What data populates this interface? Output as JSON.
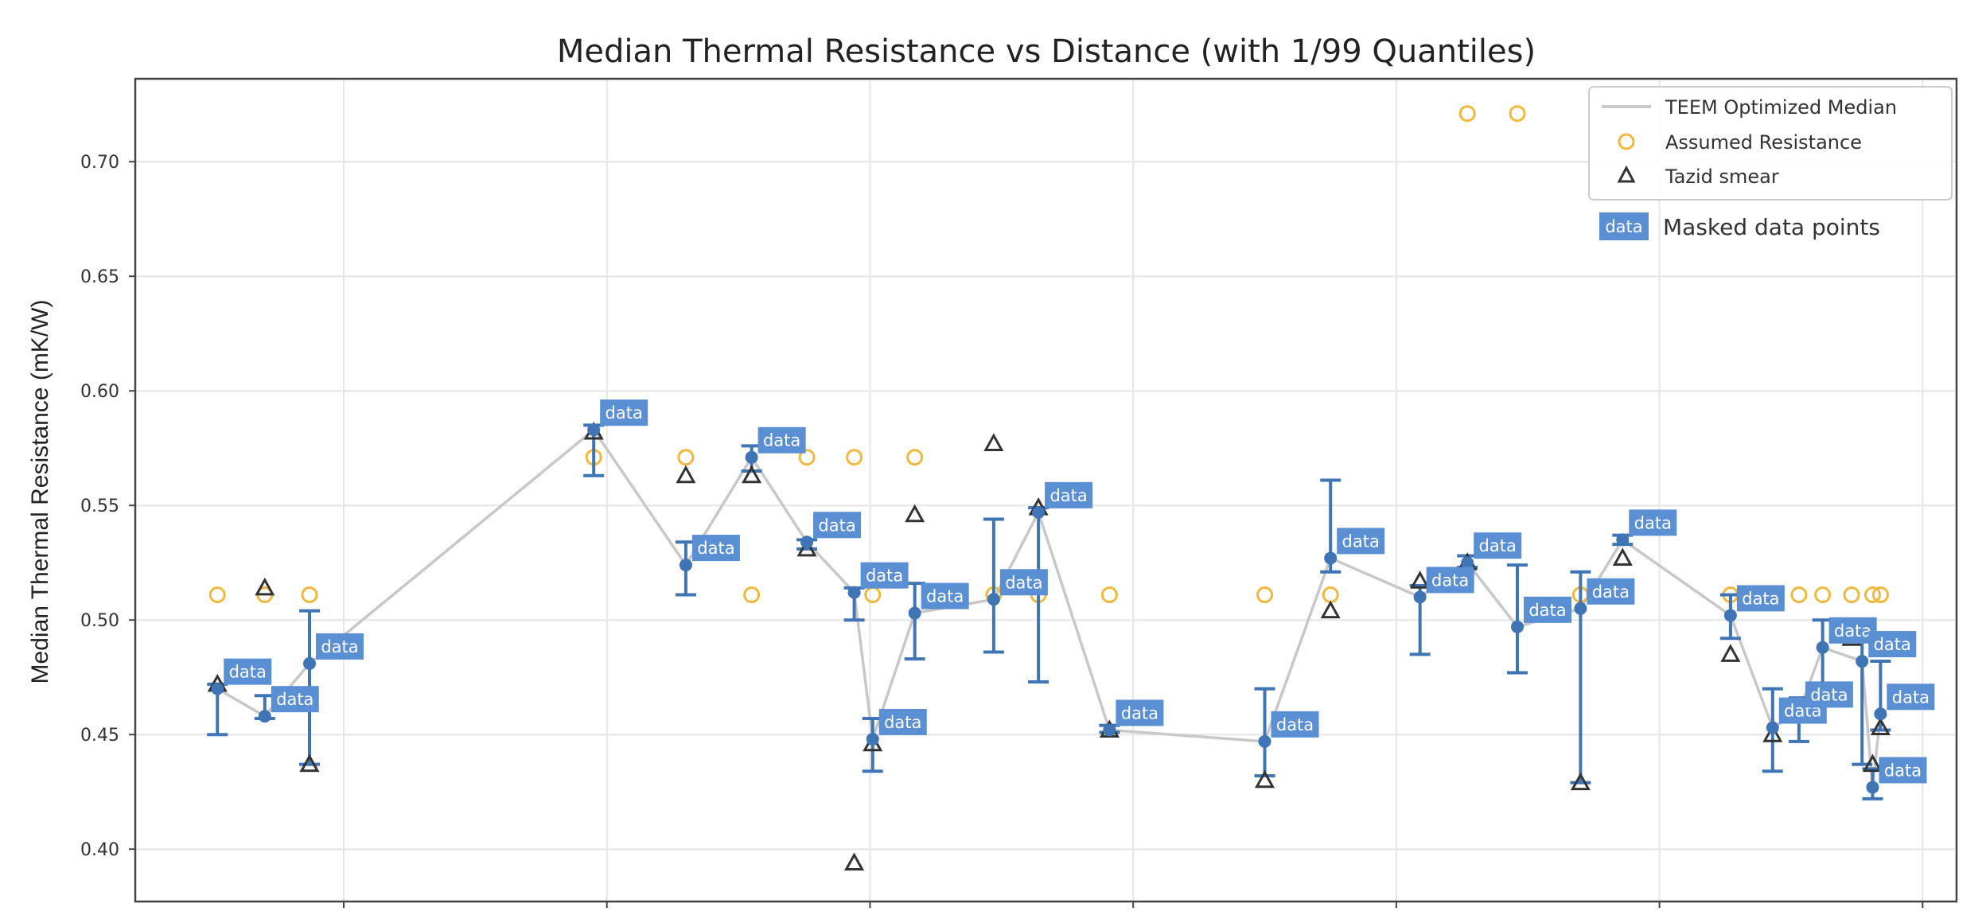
{
  "chart_data": {
    "type": "scatter",
    "title": "Median Thermal Resistance vs Distance (with 1/99 Quantiles)",
    "xlabel": "",
    "ylabel": "Median Thermal Resistance (mK/W)",
    "x_tick_labels": [],
    "xlim": [
      0.2,
      7.13
    ],
    "ylim": [
      0.377,
      0.736
    ],
    "yticks": [
      "0.40",
      "0.45",
      "0.50",
      "0.55",
      "0.60",
      "0.65",
      "0.70"
    ],
    "grid": true,
    "legend_position": "top-right",
    "colors": {
      "median_line": "#c8c8c8",
      "median_points": "#3f74b5",
      "assumed": "#f0b83c",
      "tazid": "#333333",
      "mask_box": "#5b8fd4"
    },
    "series": [
      {
        "name": "TEEM Optimized Median",
        "x": [
          0.52,
          0.7,
          0.87,
          1.95,
          2.3,
          2.55,
          2.76,
          2.94,
          3.01,
          3.17,
          3.47,
          3.64,
          3.91,
          4.5,
          4.75,
          5.09,
          5.27,
          5.46,
          5.7,
          5.86,
          6.27,
          6.43,
          6.53,
          6.62,
          6.77,
          6.81,
          6.84
        ],
        "y": [
          0.47,
          0.458,
          0.481,
          0.583,
          0.524,
          0.571,
          0.534,
          0.512,
          0.448,
          0.503,
          0.509,
          0.547,
          0.452,
          0.447,
          0.527,
          0.51,
          0.525,
          0.497,
          0.505,
          0.535,
          0.502,
          0.453,
          0.46,
          0.488,
          0.482,
          0.427,
          0.459
        ],
        "q01": [
          0.45,
          0.457,
          0.437,
          0.563,
          0.511,
          0.565,
          0.531,
          0.5,
          0.434,
          0.483,
          0.486,
          0.473,
          0.451,
          0.432,
          0.521,
          0.485,
          0.523,
          0.477,
          0.429,
          0.533,
          0.492,
          0.434,
          0.447,
          0.47,
          0.437,
          0.422,
          0.452
        ],
        "q99": [
          0.472,
          0.467,
          0.504,
          0.585,
          0.534,
          0.576,
          0.535,
          0.514,
          0.457,
          0.516,
          0.544,
          0.549,
          0.454,
          0.47,
          0.561,
          0.515,
          0.528,
          0.524,
          0.521,
          0.537,
          0.511,
          0.47,
          0.466,
          0.5,
          0.5,
          0.435,
          0.482
        ]
      },
      {
        "name": "Assumed Resistance",
        "x": [
          0.52,
          0.7,
          0.87,
          1.95,
          2.3,
          2.55,
          2.76,
          2.94,
          3.01,
          3.17,
          3.47,
          3.64,
          3.91,
          4.5,
          4.75,
          5.27,
          5.46,
          5.7,
          5.86,
          6.27,
          6.43,
          6.53,
          6.62,
          6.73,
          6.81,
          6.84
        ],
        "y": [
          0.511,
          0.511,
          0.511,
          0.571,
          0.571,
          0.511,
          0.571,
          0.571,
          0.511,
          0.571,
          0.511,
          0.511,
          0.511,
          0.511,
          0.511,
          0.721,
          0.721,
          0.511,
          0.511,
          0.511,
          0.511,
          0.511,
          0.511,
          0.511,
          0.511,
          0.511
        ]
      },
      {
        "name": "Tazid smear",
        "x": [
          0.52,
          0.7,
          0.87,
          1.95,
          2.3,
          2.55,
          2.76,
          2.94,
          3.01,
          3.17,
          3.47,
          3.64,
          3.91,
          4.5,
          4.75,
          5.09,
          5.27,
          5.7,
          5.86,
          6.27,
          6.43,
          6.62,
          6.73,
          6.81,
          6.84
        ],
        "y": [
          0.472,
          0.514,
          0.437,
          0.582,
          0.563,
          0.563,
          0.531,
          0.394,
          0.446,
          0.546,
          0.577,
          0.549,
          0.452,
          0.43,
          0.504,
          0.517,
          0.525,
          0.429,
          0.527,
          0.485,
          0.45,
          0.469,
          0.492,
          0.437,
          0.453
        ]
      }
    ],
    "mask_label": "data",
    "mask_legend": "Masked data points"
  }
}
